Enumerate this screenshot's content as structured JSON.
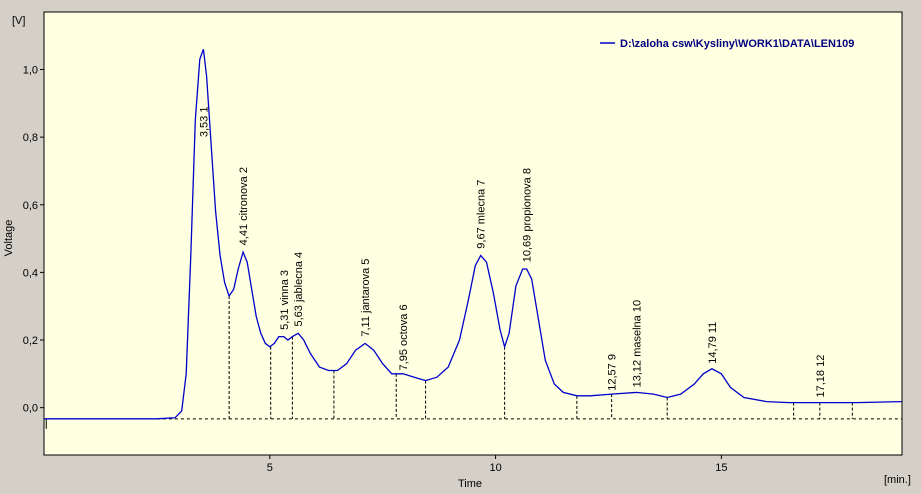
{
  "chart_data": {
    "type": "line",
    "ylabel": "Voltage",
    "xlabel": "Time",
    "y_unit": "[V]",
    "x_unit": "[min.]",
    "xlim": [
      0,
      19
    ],
    "ylim": [
      -0.14,
      1.17
    ],
    "x_ticks": [
      5,
      10,
      15
    ],
    "x_tick_labels": [
      "5",
      "10",
      "15"
    ],
    "y_ticks": [
      0.0,
      0.2,
      0.4,
      0.6,
      0.8,
      1.0
    ],
    "y_tick_labels": [
      "0,0",
      "0,2",
      "0,4",
      "0,6",
      "0,8",
      "1,0"
    ],
    "legend_position": "top-right",
    "series": [
      {
        "name": "D:\\zaloha csw\\Kysliny\\WORK1\\DATA\\LEN109",
        "color": "#0000cc",
        "x": [
          0,
          2.5,
          2.9,
          3.05,
          3.15,
          3.25,
          3.35,
          3.45,
          3.53,
          3.6,
          3.7,
          3.8,
          3.9,
          4.0,
          4.1,
          4.2,
          4.3,
          4.41,
          4.5,
          4.6,
          4.7,
          4.8,
          4.9,
          5.0,
          5.1,
          5.2,
          5.31,
          5.4,
          5.5,
          5.63,
          5.75,
          5.9,
          6.1,
          6.3,
          6.5,
          6.7,
          6.9,
          7.11,
          7.3,
          7.5,
          7.7,
          7.95,
          8.2,
          8.45,
          8.7,
          8.95,
          9.2,
          9.4,
          9.55,
          9.67,
          9.8,
          9.95,
          10.1,
          10.2,
          10.3,
          10.45,
          10.6,
          10.69,
          10.8,
          10.95,
          11.1,
          11.3,
          11.5,
          11.8,
          12.1,
          12.57,
          13.12,
          13.5,
          13.8,
          14.1,
          14.4,
          14.6,
          14.79,
          15.0,
          15.2,
          15.5,
          16.0,
          16.5,
          17.18,
          18.0,
          19.0
        ],
        "y": [
          -0.033,
          -0.033,
          -0.03,
          -0.01,
          0.1,
          0.45,
          0.85,
          1.03,
          1.06,
          0.98,
          0.78,
          0.58,
          0.45,
          0.37,
          0.33,
          0.35,
          0.41,
          0.46,
          0.43,
          0.35,
          0.27,
          0.22,
          0.19,
          0.18,
          0.19,
          0.21,
          0.21,
          0.2,
          0.21,
          0.22,
          0.2,
          0.16,
          0.12,
          0.11,
          0.11,
          0.13,
          0.17,
          0.19,
          0.17,
          0.13,
          0.1,
          0.1,
          0.09,
          0.08,
          0.09,
          0.12,
          0.2,
          0.32,
          0.42,
          0.45,
          0.43,
          0.34,
          0.23,
          0.18,
          0.22,
          0.36,
          0.41,
          0.41,
          0.38,
          0.26,
          0.14,
          0.07,
          0.045,
          0.035,
          0.035,
          0.04,
          0.045,
          0.04,
          0.03,
          0.04,
          0.07,
          0.1,
          0.115,
          0.1,
          0.06,
          0.03,
          0.018,
          0.015,
          0.015,
          0.015,
          0.018
        ]
      }
    ],
    "baseline": {
      "x": [
        2.5,
        19.0
      ],
      "y": [
        -0.033,
        -0.033
      ]
    },
    "separator_drops": [
      {
        "x": 4.1,
        "y": 0.33
      },
      {
        "x": 5.02,
        "y": 0.18
      },
      {
        "x": 5.5,
        "y": 0.21
      },
      {
        "x": 6.42,
        "y": 0.11
      },
      {
        "x": 7.8,
        "y": 0.1
      },
      {
        "x": 8.45,
        "y": 0.08
      },
      {
        "x": 10.2,
        "y": 0.18
      },
      {
        "x": 11.8,
        "y": 0.035
      },
      {
        "x": 12.57,
        "y": 0.04
      },
      {
        "x": 13.8,
        "y": 0.03
      },
      {
        "x": 16.6,
        "y": 0.015
      },
      {
        "x": 17.18,
        "y": 0.015
      },
      {
        "x": 17.9,
        "y": 0.015
      },
      {
        "x": 0.05,
        "y": -0.033
      }
    ],
    "peak_labels": [
      {
        "x": 3.53,
        "y": 0.8,
        "text": "3,53   1"
      },
      {
        "x": 4.41,
        "y": 0.48,
        "text": "4,41 citronova  2"
      },
      {
        "x": 5.31,
        "y": 0.23,
        "text": "5,31 vinna   3"
      },
      {
        "x": 5.63,
        "y": 0.24,
        "text": "5,63 jablecna  4"
      },
      {
        "x": 7.11,
        "y": 0.21,
        "text": "7,11 jantarova   5"
      },
      {
        "x": 7.95,
        "y": 0.11,
        "text": "7,95 octova   6"
      },
      {
        "x": 9.67,
        "y": 0.47,
        "text": "9,67 mlecna   7"
      },
      {
        "x": 10.69,
        "y": 0.43,
        "text": "10,69 propionova   8"
      },
      {
        "x": 12.57,
        "y": 0.05,
        "text": "12,57   9"
      },
      {
        "x": 13.12,
        "y": 0.06,
        "text": "13,12 maselna   10"
      },
      {
        "x": 14.79,
        "y": 0.13,
        "text": "14,79   11"
      },
      {
        "x": 17.18,
        "y": 0.03,
        "text": "17,18   12"
      }
    ],
    "colors": {
      "window_bg": "#d4d0c8",
      "plot_bg": "#ffffe1",
      "line": "#0000cc",
      "legend_text": "#000080",
      "marker_lines": "#000000"
    }
  }
}
